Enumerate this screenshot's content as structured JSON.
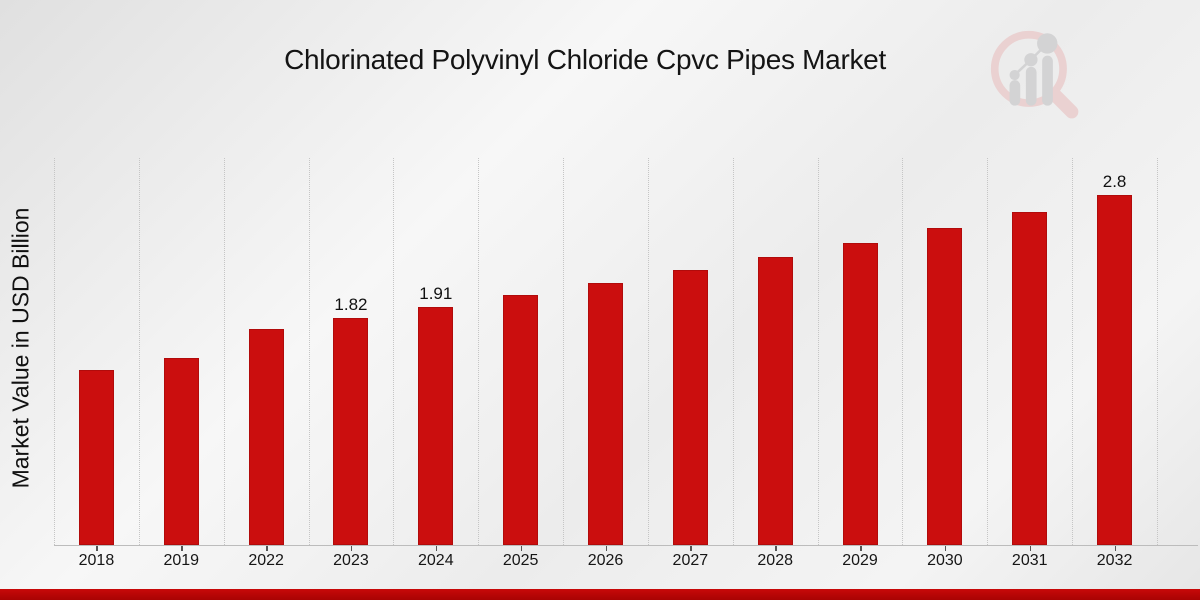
{
  "header": {
    "title": "Chlorinated Polyvinyl Chloride Cpvc Pipes Market"
  },
  "chart_data": {
    "type": "bar",
    "title": "Chlorinated Polyvinyl Chloride Cpvc Pipes Market",
    "xlabel": "",
    "ylabel": "Market Value in USD Billion",
    "categories": [
      "2018",
      "2019",
      "2022",
      "2023",
      "2024",
      "2025",
      "2026",
      "2027",
      "2028",
      "2029",
      "2030",
      "2031",
      "2032"
    ],
    "values": [
      1.4,
      1.5,
      1.73,
      1.82,
      1.91,
      2.0,
      2.1,
      2.2,
      2.31,
      2.42,
      2.54,
      2.67,
      2.8
    ],
    "data_labels": [
      "",
      "",
      "",
      "1.82",
      "1.91",
      "",
      "",
      "",
      "",
      "",
      "",
      "",
      "2.8"
    ],
    "ylim": [
      0,
      3.1
    ],
    "grid": "vertical-dotted",
    "legend": "none",
    "bar_color": "#cb0e0e"
  },
  "colors": {
    "bar": "#cb0e0e",
    "bar_edge": "rgba(130,6,6,0.35)",
    "gridline": "#c5c5c5",
    "axis_line": "#bcbcbc",
    "tick": "#555555",
    "text": "#141414",
    "footer_band_top": "#c80909",
    "footer_band_bottom": "#a80303",
    "logo_ring": "#ead1d1",
    "logo_bars": "#d3d3d4"
  },
  "icons": {
    "watermark": "magnifier-bar-chart-watermark-icon"
  }
}
